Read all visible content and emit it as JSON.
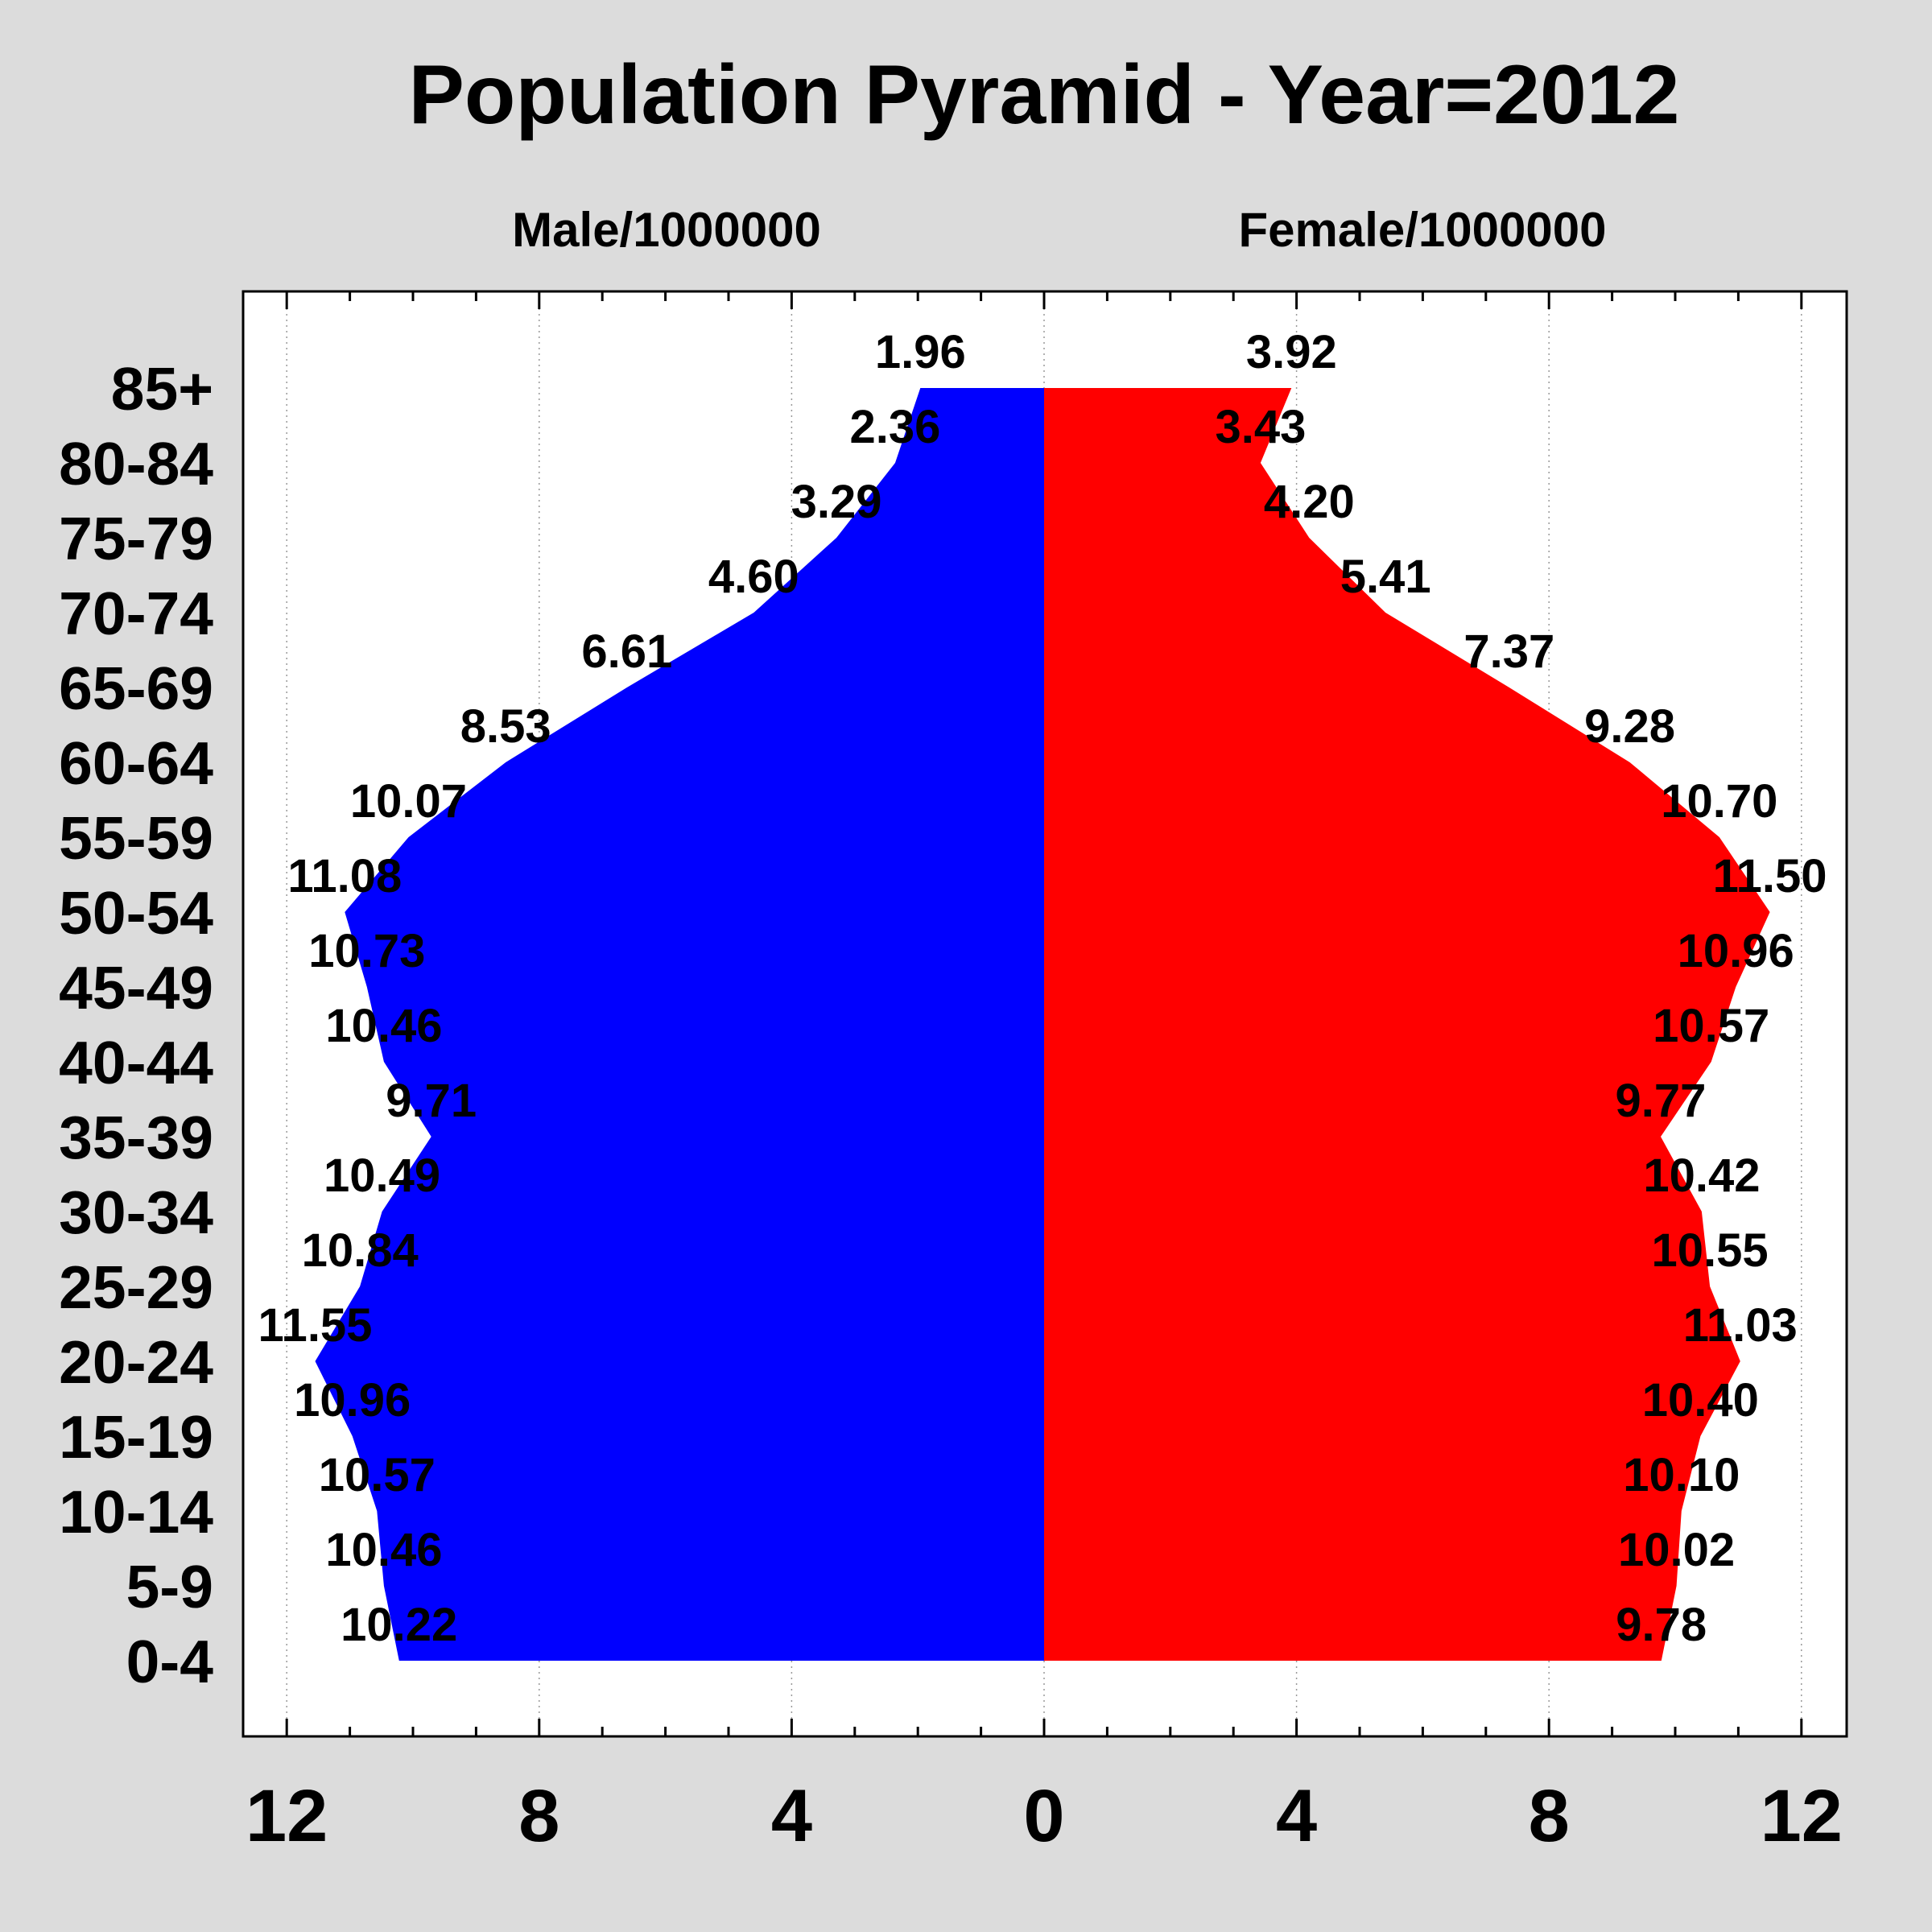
{
  "chart_data": {
    "type": "bar",
    "subtype": "population-pyramid",
    "title": "Population Pyramid - Year=2012",
    "categories": [
      "0-4",
      "5-9",
      "10-14",
      "15-19",
      "20-24",
      "25-29",
      "30-34",
      "35-39",
      "40-44",
      "45-49",
      "50-54",
      "55-59",
      "60-64",
      "65-69",
      "70-74",
      "75-79",
      "80-84",
      "85+"
    ],
    "series": [
      {
        "name": "Male/1000000",
        "color": "#0000ff",
        "values": [
          10.22,
          10.46,
          10.57,
          10.96,
          11.55,
          10.84,
          10.49,
          9.71,
          10.46,
          10.73,
          11.08,
          10.07,
          8.53,
          6.61,
          4.6,
          3.29,
          2.36,
          1.96
        ],
        "labels": [
          "10.22",
          "10.46",
          "10.57",
          "10.96",
          "11.55",
          "10.84",
          "10.49",
          "9.71",
          "10.46",
          "10.73",
          "11.08",
          "10.07",
          "8.53",
          "6.61",
          "4.60",
          "3.29",
          "2.36",
          "1.96"
        ]
      },
      {
        "name": "Female/1000000",
        "color": "#ff0000",
        "values": [
          9.78,
          10.02,
          10.1,
          10.4,
          11.03,
          10.55,
          10.42,
          9.77,
          10.57,
          10.96,
          11.5,
          10.7,
          9.28,
          7.37,
          5.41,
          4.2,
          3.43,
          3.92
        ],
        "labels": [
          "9.78",
          "10.02",
          "10.10",
          "10.40",
          "11.03",
          "10.55",
          "10.42",
          "9.77",
          "10.57",
          "10.96",
          "11.50",
          "10.70",
          "9.28",
          "7.37",
          "5.41",
          "4.20",
          "3.43",
          "3.92"
        ]
      }
    ],
    "xlim": [
      -12.7,
      12.7
    ],
    "xticks": [
      -12,
      -8,
      -4,
      0,
      4,
      8,
      12
    ],
    "xtick_labels": [
      "12",
      "8",
      "4",
      "0",
      "4",
      "8",
      "12"
    ],
    "grid": true,
    "legend": "none"
  }
}
